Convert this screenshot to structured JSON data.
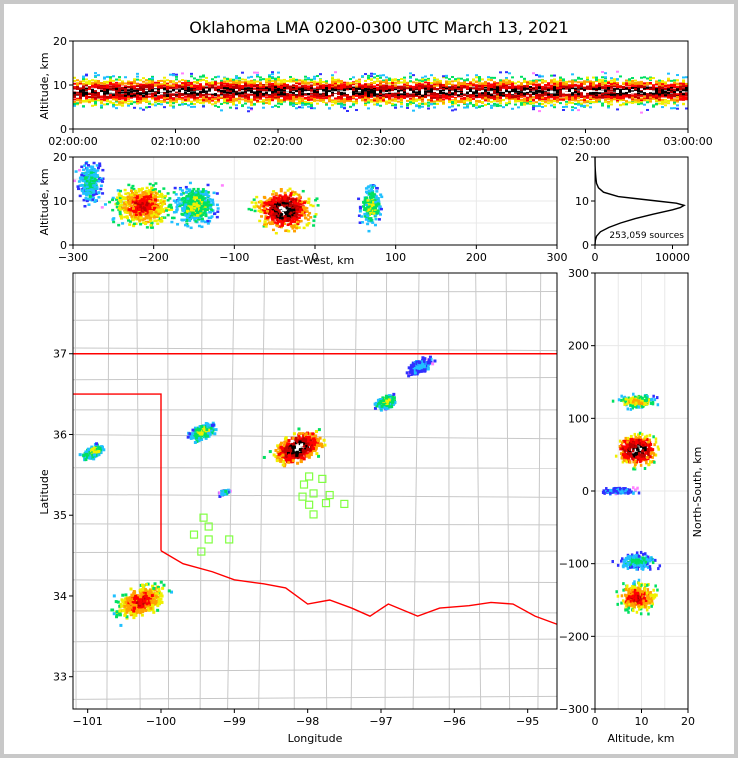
{
  "title": "Oklahoma LMA 0200-0300 UTC March 13, 2021",
  "colors": {
    "density": [
      "#ff80ff",
      "#3030ff",
      "#20c0ff",
      "#00e060",
      "#f0f000",
      "#ffa000",
      "#ff0000",
      "#c00000",
      "#000000",
      "#ffffff"
    ],
    "state_line": "#ff0000",
    "county_line": "#c8c8c8",
    "station": "#80ff40"
  },
  "panels": {
    "time_height": {
      "ylabel": "Altitude, km",
      "yticks": [
        "0",
        "10",
        "20"
      ],
      "xticks": [
        "02:00:00",
        "02:10:00",
        "02:20:00",
        "02:30:00",
        "02:40:00",
        "02:50:00",
        "03:00:00"
      ],
      "xlim_minutes": [
        0,
        60
      ],
      "ylim_km": [
        0,
        20
      ]
    },
    "ew_height": {
      "ylabel": "Altitude, km",
      "xlabel": "East-West, km",
      "yticks": [
        "0",
        "10",
        "20"
      ],
      "xticks": [
        "−300",
        "−200",
        "−100",
        "0",
        "100",
        "200",
        "300"
      ],
      "xlim_km": [
        -300,
        300
      ],
      "ylim_km": [
        0,
        20
      ]
    },
    "alt_hist": {
      "xticks": [
        "0",
        "10000"
      ],
      "yticks": [
        "0",
        "10",
        "20"
      ],
      "sources_label": "253,059 sources",
      "xlim": [
        0,
        12000
      ],
      "ylim_km": [
        0,
        20
      ]
    },
    "plan": {
      "xlabel": "Longitude",
      "ylabel": "Latitude",
      "xticks": [
        "−101",
        "−100",
        "−99",
        "−98",
        "−97",
        "−96",
        "−95"
      ],
      "yticks": [
        "33",
        "34",
        "35",
        "36",
        "37"
      ],
      "xlim_lon": [
        -101.2,
        -94.6
      ],
      "ylim_lat": [
        32.6,
        38.0
      ]
    },
    "ns_height": {
      "xlabel": "Altitude, km",
      "ylabel": "North-South, km",
      "xticks": [
        "0",
        "10",
        "20"
      ],
      "yticks": [
        "300",
        "200",
        "100",
        "0",
        "−100",
        "−200",
        "−300"
      ],
      "xlim_km": [
        0,
        20
      ],
      "ylim_km": [
        -300,
        300
      ]
    }
  },
  "chart_data": [
    {
      "type": "heatmap",
      "name": "time-height",
      "x_unit": "UTC time",
      "y_unit": "km",
      "band": {
        "y_low_km": 2,
        "y_high_km": 16,
        "core_km": 8.5
      }
    },
    {
      "type": "heatmap",
      "name": "east-west vs altitude",
      "x_unit": "km",
      "y_unit": "km",
      "clusters": [
        {
          "x_km": -215,
          "y_km": 9,
          "width_km": 70,
          "max_level": 7
        },
        {
          "x_km": -280,
          "y_km": 14,
          "width_km": 30,
          "max_level": 3
        },
        {
          "x_km": -150,
          "y_km": 9,
          "width_km": 50,
          "max_level": 4
        },
        {
          "x_km": -40,
          "y_km": 8,
          "width_km": 70,
          "max_level": 9
        },
        {
          "x_km": 68,
          "y_km": 9,
          "width_km": 25,
          "max_level": 4
        }
      ]
    },
    {
      "type": "line",
      "name": "altitude histogram",
      "x_unit": "sources",
      "y_unit": "km",
      "y": [
        0,
        1,
        2,
        3,
        4,
        5,
        6,
        7,
        8,
        8.5,
        9,
        9.5,
        10,
        11,
        12,
        13,
        14,
        15,
        16,
        17,
        18,
        20
      ],
      "x": [
        0,
        40,
        200,
        700,
        1800,
        3300,
        5200,
        7500,
        10000,
        11000,
        11500,
        10500,
        8000,
        3000,
        1100,
        450,
        200,
        130,
        80,
        40,
        15,
        0
      ]
    },
    {
      "type": "heatmap",
      "name": "plan view",
      "x_unit": "longitude",
      "y_unit": "latitude",
      "clusters": [
        {
          "lon": -100.3,
          "lat": 33.95,
          "size_deg": 0.7,
          "max_level": 7
        },
        {
          "lon": -98.15,
          "lat": 35.85,
          "size_deg": 0.7,
          "max_level": 9
        },
        {
          "lon": -99.45,
          "lat": 36.05,
          "size_deg": 0.35,
          "max_level": 4
        },
        {
          "lon": -100.95,
          "lat": 35.8,
          "size_deg": 0.3,
          "max_level": 4
        },
        {
          "lon": -96.95,
          "lat": 36.42,
          "size_deg": 0.3,
          "max_level": 4
        },
        {
          "lon": -96.5,
          "lat": 36.85,
          "size_deg": 0.35,
          "max_level": 2
        },
        {
          "lon": -99.15,
          "lat": 35.3,
          "size_deg": 0.12,
          "max_level": 3
        }
      ],
      "stations": [
        [
          -97.98,
          35.48
        ],
        [
          -97.8,
          35.45
        ],
        [
          -98.05,
          35.38
        ],
        [
          -97.92,
          35.27
        ],
        [
          -98.07,
          35.23
        ],
        [
          -97.7,
          35.25
        ],
        [
          -97.98,
          35.13
        ],
        [
          -97.75,
          35.15
        ],
        [
          -97.5,
          35.14
        ],
        [
          -97.92,
          35.01
        ],
        [
          -99.42,
          34.97
        ],
        [
          -99.35,
          34.86
        ],
        [
          -99.55,
          34.76
        ],
        [
          -99.35,
          34.7
        ],
        [
          -99.07,
          34.7
        ],
        [
          -99.45,
          34.55
        ]
      ]
    },
    {
      "type": "heatmap",
      "name": "altitude vs north-south",
      "x_unit": "km",
      "y_unit": "km",
      "clusters": [
        {
          "x_km": 9,
          "y_km": 58,
          "height_km": 45,
          "max_level": 9
        },
        {
          "x_km": 9,
          "y_km": 125,
          "height_km": 18,
          "max_level": 5
        },
        {
          "x_km": 9,
          "y_km": -145,
          "height_km": 40,
          "max_level": 7
        },
        {
          "x_km": 9,
          "y_km": -95,
          "height_km": 20,
          "max_level": 3
        },
        {
          "x_km": 5,
          "y_km": 2,
          "height_km": 10,
          "max_level": 2
        }
      ]
    }
  ]
}
